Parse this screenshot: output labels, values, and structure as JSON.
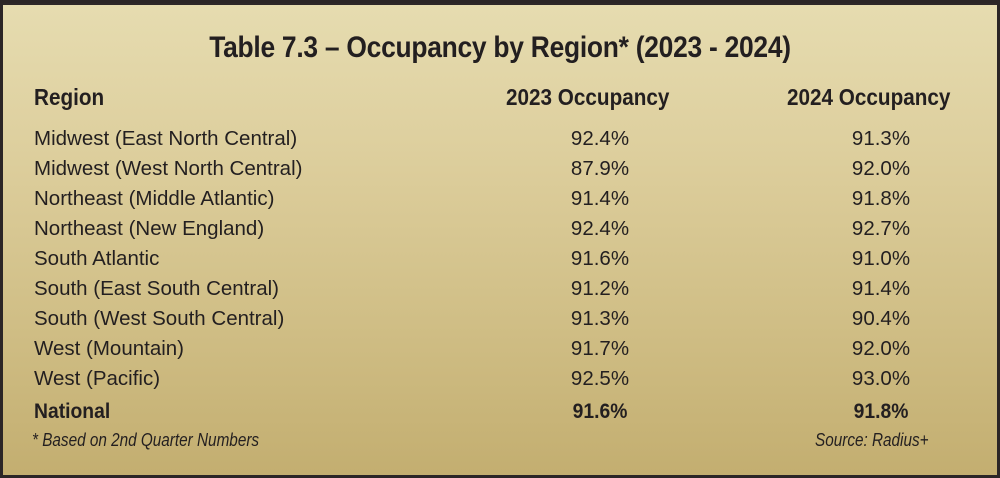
{
  "table": {
    "title": "Table 7.3 – Occupancy by Region* (2023 - 2024)",
    "columns": [
      "Region",
      "2023 Occupancy",
      "2024 Occupancy"
    ],
    "rows": [
      {
        "region": "Midwest (East North Central)",
        "y2023": "92.4%",
        "y2024": "91.3%"
      },
      {
        "region": "Midwest (West North Central)",
        "y2023": "87.9%",
        "y2024": "92.0%"
      },
      {
        "region": "Northeast (Middle Atlantic)",
        "y2023": "91.4%",
        "y2024": "91.8%"
      },
      {
        "region": "Northeast (New England)",
        "y2023": "92.4%",
        "y2024": "92.7%"
      },
      {
        "region": "South Atlantic",
        "y2023": "91.6%",
        "y2024": "91.0%"
      },
      {
        "region": "South (East South Central)",
        "y2023": "91.2%",
        "y2024": "91.4%"
      },
      {
        "region": "South (West South Central)",
        "y2023": "91.3%",
        "y2024": "90.4%"
      },
      {
        "region": "West (Mountain)",
        "y2023": "91.7%",
        "y2024": "92.0%"
      },
      {
        "region": "West (Pacific)",
        "y2023": "92.5%",
        "y2024": "93.0%"
      }
    ],
    "total": {
      "region": "National",
      "y2023": "91.6%",
      "y2024": "91.8%"
    },
    "footnote": "* Based on 2nd Quarter Numbers",
    "source": "Source: Radius+"
  },
  "colors": {
    "background_top": "#e6dcb0",
    "background_bottom": "#c3ae70",
    "border": "#2b2526",
    "text": "#231f20"
  }
}
